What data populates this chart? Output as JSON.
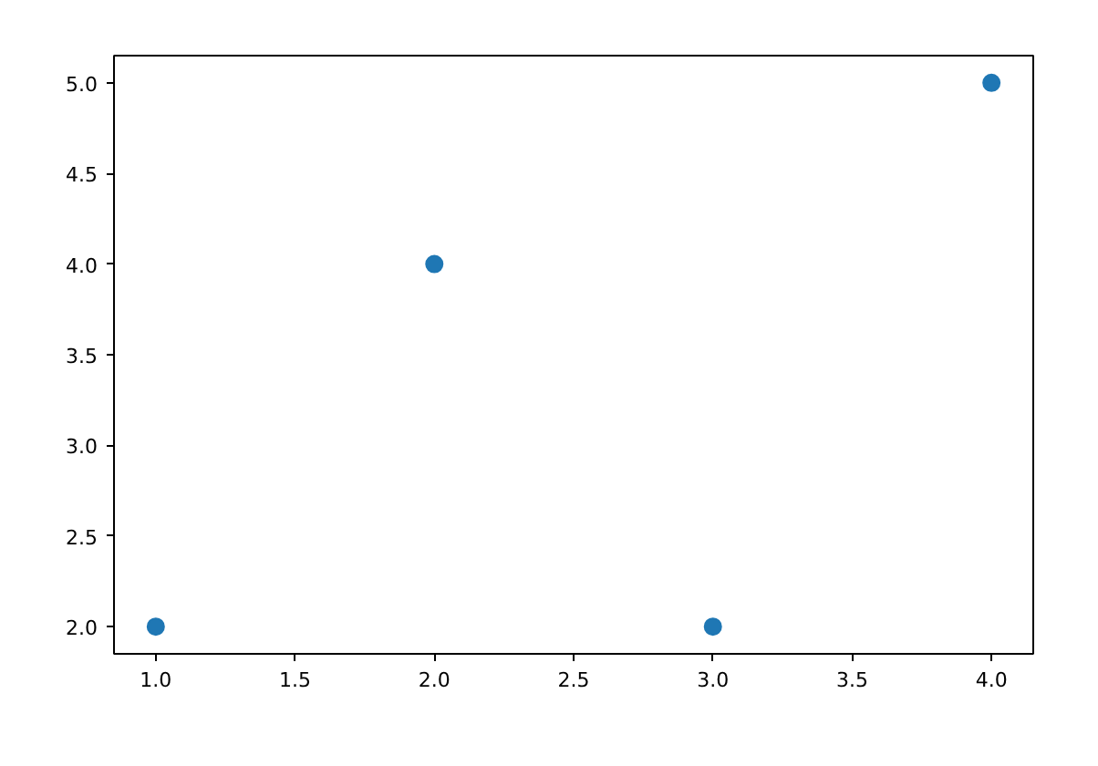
{
  "chart_data": {
    "type": "scatter",
    "x": [
      1,
      2,
      3,
      4
    ],
    "series": [
      {
        "color": "#1f77b4",
        "values": [
          2,
          4,
          2,
          5
        ]
      }
    ],
    "marker": "circle",
    "grid": false,
    "xlim": [
      0.85,
      4.15
    ],
    "ylim": [
      1.85,
      5.15
    ],
    "xticks": [
      {
        "value": 1,
        "label": "1.0"
      },
      {
        "value": 1.5,
        "label": "1.5"
      },
      {
        "value": 2,
        "label": "2.0"
      },
      {
        "value": 2.5,
        "label": "2.5"
      },
      {
        "value": 3,
        "label": "3.0"
      },
      {
        "value": 3.5,
        "label": "3.5"
      },
      {
        "value": 4,
        "label": "4.0"
      }
    ],
    "yticks": [
      {
        "value": 2,
        "label": "2.0"
      },
      {
        "value": 2.5,
        "label": "2.5"
      },
      {
        "value": 3,
        "label": "3.0"
      },
      {
        "value": 3.5,
        "label": "3.5"
      },
      {
        "value": 4,
        "label": "4.0"
      },
      {
        "value": 4.5,
        "label": "4.5"
      },
      {
        "value": 5,
        "label": "5.0"
      }
    ]
  }
}
